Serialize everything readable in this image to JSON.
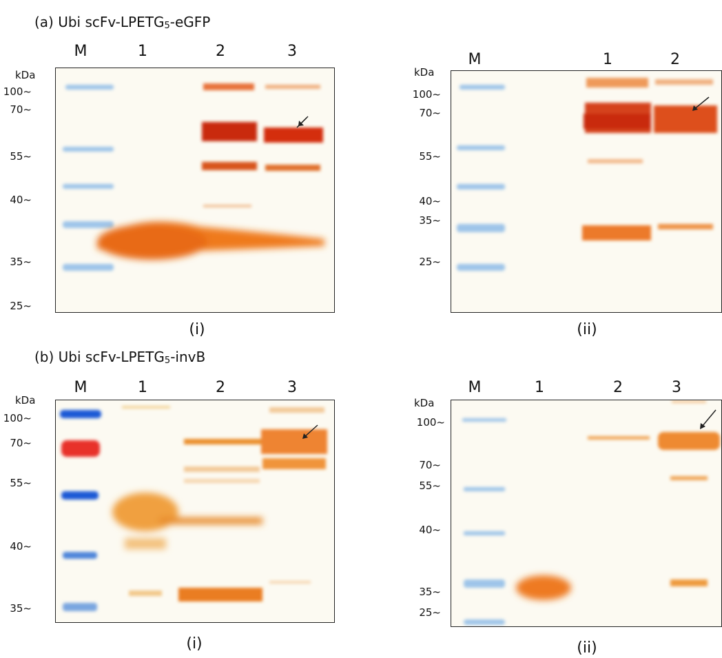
{
  "figure": {
    "section_a": {
      "label_prefix": "(a) Ubi scFv-LPETG",
      "label_sub": "5",
      "label_suffix": "-eGFP",
      "gels": [
        {
          "caption": "(i)",
          "lanes": [
            "M",
            "1",
            "2",
            "3"
          ],
          "unit": "kDa",
          "markers": [
            "100~",
            "70~",
            "55~",
            "40~",
            "35~",
            "25~"
          ]
        },
        {
          "caption": "(ii)",
          "lanes": [
            "M",
            "1",
            "2"
          ],
          "unit": "kDa",
          "markers": [
            "100~",
            "70~",
            "55~",
            "40~",
            "35~",
            "25~"
          ]
        }
      ]
    },
    "section_b": {
      "label_prefix": "(b) Ubi scFv-LPETG",
      "label_sub": "5",
      "label_suffix": "-invB",
      "gels": [
        {
          "caption": "(i)",
          "lanes": [
            "M",
            "1",
            "2",
            "3"
          ],
          "unit": "kDa",
          "markers": [
            "100~",
            "70~",
            "55~",
            "40~",
            "35~"
          ]
        },
        {
          "caption": "(ii)",
          "lanes": [
            "M",
            "1",
            "2",
            "3"
          ],
          "unit": "kDa",
          "markers": [
            "100~",
            "70~",
            "55~",
            "40~",
            "35~",
            "25~"
          ]
        }
      ]
    },
    "colors": {
      "marker_blue": "#6aa9e0",
      "marker_dark_blue": "#1e5ad6",
      "marker_red": "#e8322a",
      "band_red": "#d8340f",
      "band_orange": "#f08a2a",
      "band_light": "#f4b86a"
    }
  }
}
